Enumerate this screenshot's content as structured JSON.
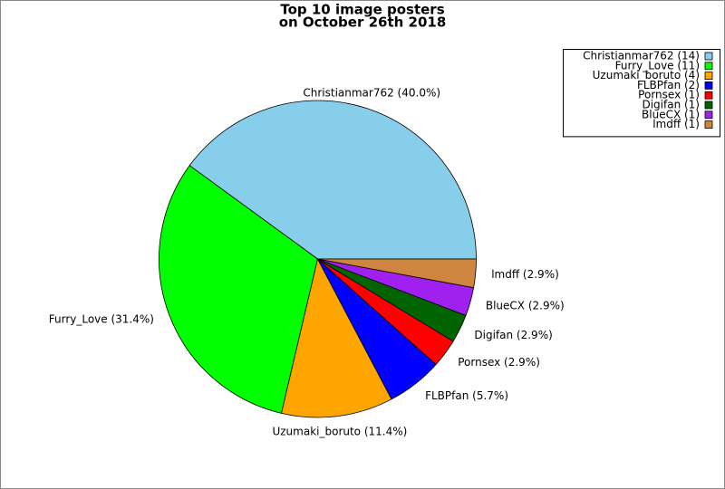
{
  "chart_data": {
    "type": "pie",
    "title": "Top 10 image posters",
    "subtitle": "on October 26th 2018",
    "categories": [
      "Christianmar762 (14)",
      "Furry_Love (11)",
      "Uzumaki_boruto (4)",
      "FLBPfan (2)",
      "Pornsex (1)",
      "Digifan (1)",
      "BlueCX (1)",
      "lmdff (1)"
    ],
    "values": [
      40.0,
      31.4,
      11.4,
      5.7,
      2.9,
      2.9,
      2.9,
      2.9
    ],
    "value_labels": [
      "Christianmar762 (40.0%)",
      "Furry_Love (31.4%)",
      "Uzumaki_boruto (11.4%)",
      "FLBPfan (5.7%)",
      "Pornsex (2.9%)",
      "Digifan (2.9%)",
      "BlueCX (2.9%)",
      "lmdff (2.9%)"
    ],
    "colors": [
      "#87ceeb",
      "#00ff00",
      "#ffa500",
      "#0000ff",
      "#ff0000",
      "#006400",
      "#a020f0",
      "#cd853f"
    ],
    "legend": "upper right"
  }
}
